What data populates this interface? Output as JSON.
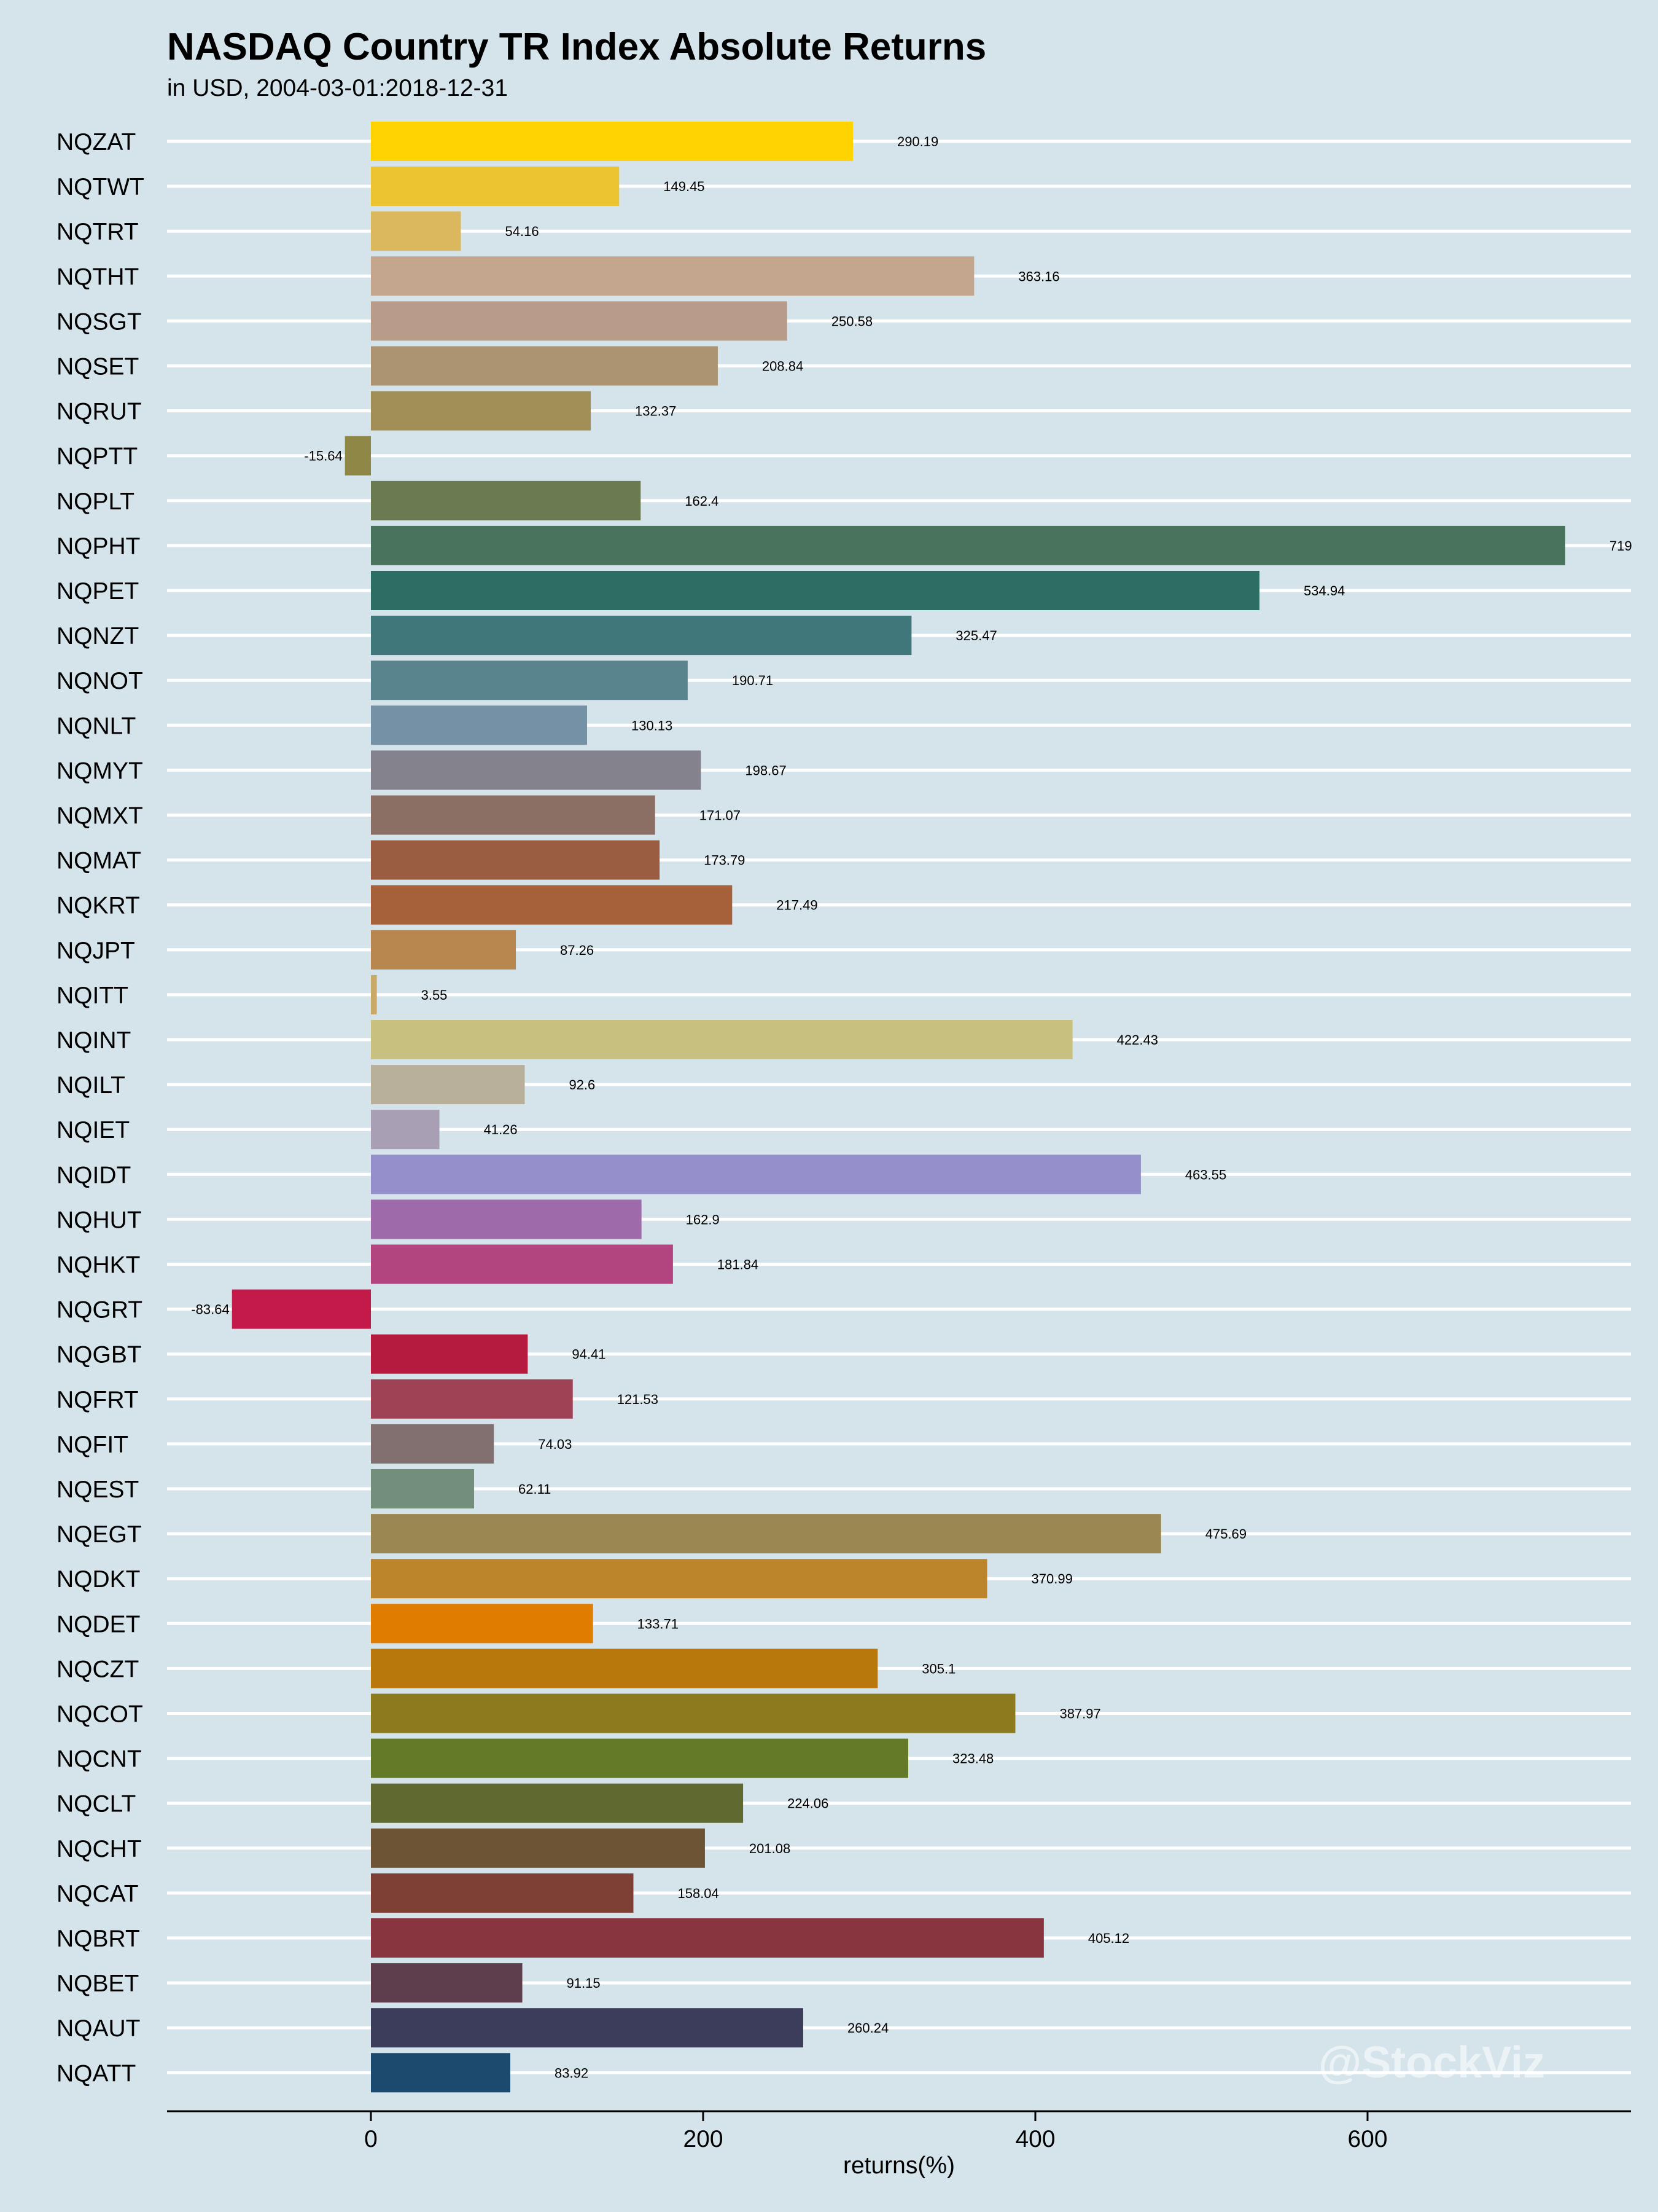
{
  "watermark": "@StockViz",
  "chart_data": {
    "type": "bar",
    "orientation": "horizontal",
    "title": "NASDAQ Country TR Index Absolute Returns",
    "subtitle": "in USD, 2004-03-01:2018-12-31",
    "xlabel": "returns(%)",
    "ylabel": "",
    "xlim": [
      -124,
      760
    ],
    "xticks": [
      0,
      200,
      400,
      600
    ],
    "grid": "horizontal lines only",
    "legend": "none",
    "categories": [
      "NQZAT",
      "NQTWT",
      "NQTRT",
      "NQTHT",
      "NQSGT",
      "NQSET",
      "NQRUT",
      "NQPTT",
      "NQPLT",
      "NQPHT",
      "NQPET",
      "NQNZT",
      "NQNOT",
      "NQNLT",
      "NQMYT",
      "NQMXT",
      "NQMAT",
      "NQKRT",
      "NQJPT",
      "NQITT",
      "NQINT",
      "NQILT",
      "NQIET",
      "NQIDT",
      "NQHUT",
      "NQHKT",
      "NQGRT",
      "NQGBT",
      "NQFRT",
      "NQFIT",
      "NQEST",
      "NQEGT",
      "NQDKT",
      "NQDET",
      "NQCZT",
      "NQCOT",
      "NQCNT",
      "NQCLT",
      "NQCHT",
      "NQCAT",
      "NQBRT",
      "NQBET",
      "NQAUT",
      "NQATT"
    ],
    "values": [
      290.19,
      149.45,
      54.16,
      363.16,
      250.58,
      208.84,
      132.37,
      -15.64,
      162.4,
      719,
      534.94,
      325.47,
      190.71,
      130.13,
      198.67,
      171.07,
      173.79,
      217.49,
      87.26,
      3.55,
      422.43,
      92.6,
      41.26,
      463.55,
      162.9,
      181.84,
      -83.64,
      94.41,
      121.53,
      74.03,
      62.11,
      475.69,
      370.99,
      133.71,
      305.1,
      387.97,
      323.48,
      224.06,
      201.08,
      158.04,
      405.12,
      91.15,
      260.24,
      83.92
    ],
    "value_labels": [
      "290.19",
      "149.45",
      "54.16",
      "363.16",
      "250.58",
      "208.84",
      "132.37",
      "-15.64",
      "162.4",
      "719",
      "534.94",
      "325.47",
      "190.71",
      "130.13",
      "198.67",
      "171.07",
      "173.79",
      "217.49",
      "87.26",
      "3.55",
      "422.43",
      "92.6",
      "41.26",
      "463.55",
      "162.9",
      "181.84",
      "-83.64",
      "94.41",
      "121.53",
      "74.03",
      "62.11",
      "475.69",
      "370.99",
      "133.71",
      "305.1",
      "387.97",
      "323.48",
      "224.06",
      "201.08",
      "158.04",
      "405.12",
      "91.15",
      "260.24",
      "83.92"
    ],
    "colors": [
      "#ffd300",
      "#ecc431",
      "#dbb85e",
      "#c4a68e",
      "#b89b89",
      "#ac9372",
      "#a28f57",
      "#8f8745",
      "#6b7b51",
      "#4a735e",
      "#2d6e64",
      "#3f777b",
      "#5a848d",
      "#7591a5",
      "#83828d",
      "#8b6f64",
      "#9b5d41",
      "#a6613b",
      "#b8874f",
      "#c9a967",
      "#c8c07e",
      "#b9b09c",
      "#a89fb4",
      "#958fcc",
      "#9e6aaa",
      "#b2447f",
      "#c31a4a",
      "#b51b3f",
      "#a04255",
      "#81706f",
      "#748e7c",
      "#9a8752",
      "#bc852c",
      "#e07c00",
      "#b8780c",
      "#8c7a1c",
      "#657a28",
      "#606a30",
      "#6d5434",
      "#7e4035",
      "#88353f",
      "#5e3d4d",
      "#3c3d5b",
      "#1c4a6e"
    ]
  }
}
